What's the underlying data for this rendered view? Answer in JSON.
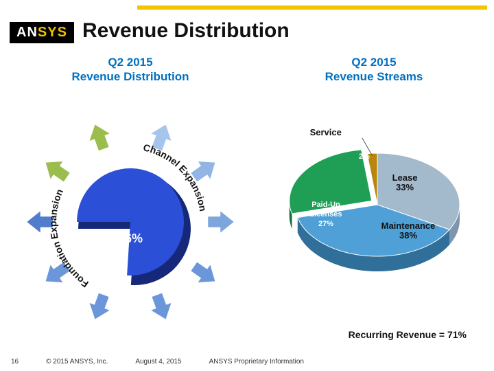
{
  "page": {
    "title": "Revenue Distribution",
    "top_bar_color": "#f2c500",
    "background": "#ffffff"
  },
  "logo": {
    "text_a": "AN",
    "text_b": "SYS"
  },
  "footer": {
    "page_number": "16",
    "copyright": "© 2015 ANSYS, Inc.",
    "date": "August 4, 2015",
    "confidential": "ANSYS Proprietary Information"
  },
  "left_chart": {
    "type": "pie-with-arrows",
    "title_line1": "Q2 2015",
    "title_line2": "Revenue Distribution",
    "inner_pct": "76%",
    "inner_value": 76,
    "slice_color": "#2b4fd6",
    "slice_shadow": "#16287a",
    "arrow_ring_radius": 125,
    "arrows": [
      {
        "angle": -160,
        "color": "#5b8bd5"
      },
      {
        "angle": -125,
        "color": "#5b8bd5"
      },
      {
        "angle": -90,
        "color": "#3f6fc8"
      },
      {
        "angle": -55,
        "color": "#8fb63a"
      },
      {
        "angle": -20,
        "color": "#8fb63a"
      },
      {
        "angle": 20,
        "color": "#9bbfe8"
      },
      {
        "angle": 55,
        "color": "#85aee0"
      },
      {
        "angle": 90,
        "color": "#6f9cd9"
      },
      {
        "angle": 125,
        "color": "#5b8bd5"
      },
      {
        "angle": 160,
        "color": "#5b8bd5"
      }
    ],
    "curved_labels": {
      "foundation": "Foundation Expansion",
      "channel": "Channel Expansion"
    }
  },
  "right_chart": {
    "type": "pie",
    "title_line1": "Q2 2015",
    "title_line2": "Revenue Streams",
    "slices": [
      {
        "label": "Lease",
        "pct": "33%",
        "value": 33,
        "color": "#a3b9cc",
        "side": "#7d96ad"
      },
      {
        "label": "Maintenance",
        "pct": "38%",
        "value": 38,
        "color": "#4ea0d6",
        "side": "#2f6f99"
      },
      {
        "label": "Paid-Up Licenses",
        "pct": "27%",
        "value": 27,
        "color": "#1f9e55",
        "side": "#156f3a",
        "explode": 10
      },
      {
        "label": "Service",
        "pct": "2%",
        "value": 2,
        "color": "#b8860b",
        "side": "#8a6508"
      }
    ],
    "recurring_label": "Recurring Revenue = 71%"
  }
}
